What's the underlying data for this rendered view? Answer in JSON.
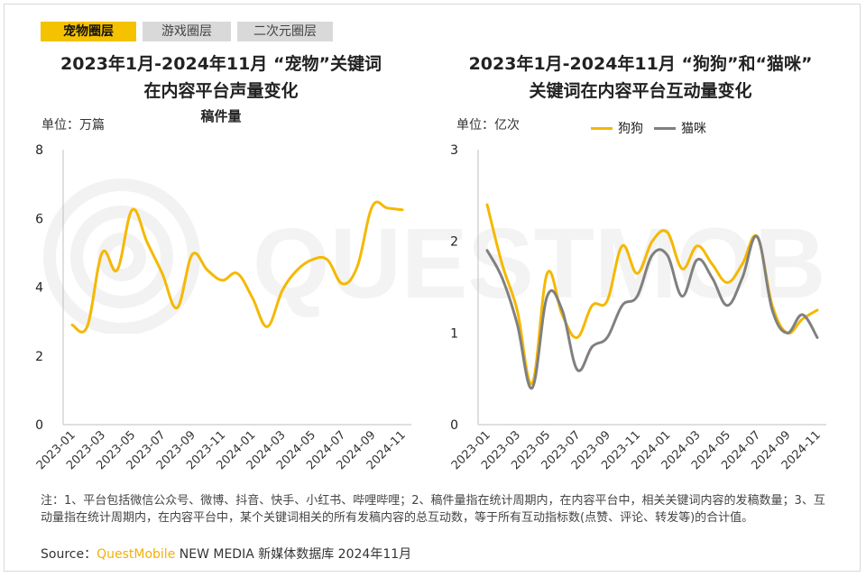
{
  "tabs": [
    {
      "label": "宠物圈层",
      "active": true
    },
    {
      "label": "游戏圈层",
      "active": false
    },
    {
      "label": "二次元圈层",
      "active": false
    }
  ],
  "watermark": "QUESTMOBILE",
  "left": {
    "title_line1": "2023年1月-2024年11月 “宠物”关键词",
    "title_line2": "在内容平台声量变化",
    "subtitle": "稿件量",
    "unit": "单位：万篇"
  },
  "right": {
    "title_line1": "2023年1月-2024年11月 “狗狗”和“猫咪”",
    "title_line2": "关键词在内容平台互动量变化",
    "unit": "单位：亿次"
  },
  "colors": {
    "yellow": "#f5b800",
    "gray": "#808080",
    "tab_active": "#f5c200"
  },
  "chart_data": [
    {
      "type": "line",
      "title": "稿件量",
      "ylabel": "单位：万篇",
      "ylim": [
        0,
        8
      ],
      "yticks": [
        0,
        2,
        4,
        6,
        8
      ],
      "x": [
        "2023-01",
        "2023-02",
        "2023-03",
        "2023-04",
        "2023-05",
        "2023-06",
        "2023-07",
        "2023-08",
        "2023-09",
        "2023-10",
        "2023-11",
        "2023-12",
        "2024-01",
        "2024-02",
        "2024-03",
        "2024-04",
        "2024-05",
        "2024-06",
        "2024-07",
        "2024-08",
        "2024-09",
        "2024-10",
        "2024-11"
      ],
      "xtick_labels": [
        "2023-01",
        "2023-03",
        "2023-05",
        "2023-07",
        "2023-09",
        "2023-11",
        "2024-01",
        "2024-03",
        "2024-05",
        "2024-07",
        "2024-09",
        "2024-11"
      ],
      "series": [
        {
          "color": "#f5b800",
          "values": [
            2.9,
            2.85,
            5.0,
            4.5,
            6.25,
            5.3,
            4.4,
            3.4,
            4.95,
            4.5,
            4.2,
            4.4,
            3.7,
            2.85,
            3.9,
            4.5,
            4.8,
            4.8,
            4.1,
            4.6,
            6.35,
            6.3,
            6.25
          ]
        }
      ],
      "grid": false
    },
    {
      "type": "line",
      "ylabel": "单位：亿次",
      "ylim": [
        0,
        3
      ],
      "yticks": [
        0,
        1,
        2,
        3
      ],
      "x": [
        "2023-01",
        "2023-02",
        "2023-03",
        "2023-04",
        "2023-05",
        "2023-06",
        "2023-07",
        "2023-08",
        "2023-09",
        "2023-10",
        "2023-11",
        "2023-12",
        "2024-01",
        "2024-02",
        "2024-03",
        "2024-04",
        "2024-05",
        "2024-06",
        "2024-07",
        "2024-08",
        "2024-09",
        "2024-10",
        "2024-11"
      ],
      "xtick_labels": [
        "2023-01",
        "2023-03",
        "2023-05",
        "2023-07",
        "2023-09",
        "2023-11",
        "2024-01",
        "2024-03",
        "2024-05",
        "2024-07",
        "2024-09",
        "2024-11"
      ],
      "series": [
        {
          "name": "狗狗",
          "color": "#f5b800",
          "values": [
            2.4,
            1.75,
            1.25,
            0.45,
            1.65,
            1.2,
            0.95,
            1.3,
            1.35,
            1.95,
            1.65,
            2.0,
            2.1,
            1.7,
            1.95,
            1.75,
            1.55,
            1.75,
            2.05,
            1.3,
            1.0,
            1.15,
            1.25
          ]
        },
        {
          "name": "猫咪",
          "color": "#808080",
          "values": [
            1.9,
            1.6,
            1.1,
            0.4,
            1.4,
            1.25,
            0.6,
            0.85,
            0.95,
            1.3,
            1.4,
            1.85,
            1.85,
            1.4,
            1.8,
            1.6,
            1.3,
            1.6,
            2.05,
            1.25,
            1.0,
            1.2,
            0.95
          ]
        }
      ],
      "legend": "top-center",
      "grid": false
    }
  ],
  "note": "注：1、平台包括微信公众号、微博、抖音、快手、小红书、哔哩哔哩；2、稿件量指在统计周期内，在内容平台中，相关关键词内容的发稿数量；3、互动量指在统计周期内，在内容平台中，某个关键词相关的所有发稿内容的总互动数，等于所有互动指标数(点赞、评论、转发等)的合计值。",
  "source": {
    "prefix": "Source：",
    "brand": "QuestMobile",
    "rest": " NEW MEDIA 新媒体数据库 2024年11月"
  }
}
